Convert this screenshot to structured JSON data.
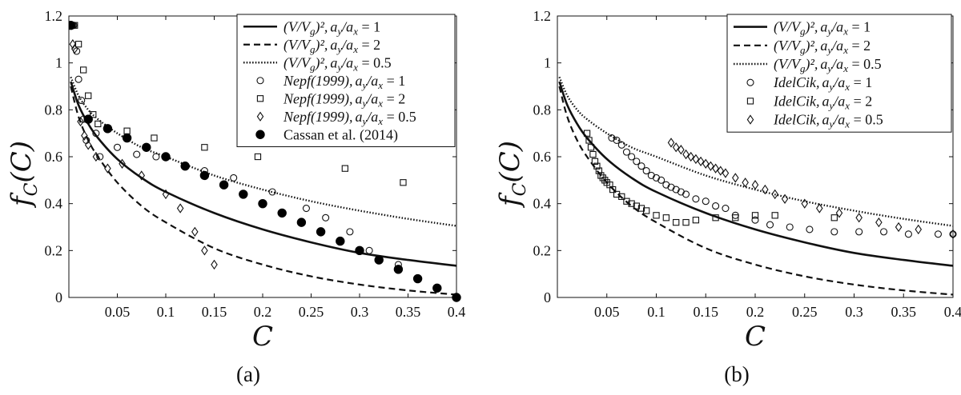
{
  "figure": {
    "panel_labels": [
      "(a)",
      "(b)"
    ]
  },
  "chart_data": [
    {
      "type": "line",
      "panel": "(a)",
      "xlabel": "C",
      "ylabel": "f_C(C)",
      "ylabel_main": "f",
      "ylabel_sub": "C",
      "ylabel_arg": "(C)",
      "xlim": [
        0,
        0.4
      ],
      "ylim": [
        0,
        1.2
      ],
      "xticks": [
        "0.05",
        "0.1",
        "0.15",
        "0.2",
        "0.25",
        "0.3",
        "0.35",
        "0.4"
      ],
      "yticks": [
        "0",
        "0.2",
        "0.4",
        "0.6",
        "0.8",
        "1",
        "1.2"
      ],
      "legend_position": "top-right",
      "lines": [
        {
          "name": "(V/V_g)^2, a_y/a_x = 1",
          "style": "solid",
          "x": [
            0.002,
            0.01,
            0.02,
            0.03,
            0.05,
            0.075,
            0.1,
            0.15,
            0.2,
            0.25,
            0.3,
            0.35,
            0.4
          ],
          "y": [
            0.92,
            0.82,
            0.74,
            0.68,
            0.59,
            0.51,
            0.45,
            0.36,
            0.29,
            0.235,
            0.19,
            0.16,
            0.135
          ]
        },
        {
          "name": "(V/V_g)^2, a_y/a_x = 2",
          "style": "dashed",
          "x": [
            0.002,
            0.01,
            0.02,
            0.03,
            0.05,
            0.075,
            0.1,
            0.15,
            0.2,
            0.25,
            0.3,
            0.35,
            0.4
          ],
          "y": [
            0.9,
            0.77,
            0.67,
            0.6,
            0.49,
            0.39,
            0.32,
            0.21,
            0.14,
            0.09,
            0.055,
            0.03,
            0.012
          ]
        },
        {
          "name": "(V/V_g)^2, a_y/a_x = 0.5",
          "style": "dotted",
          "x": [
            0.002,
            0.01,
            0.02,
            0.03,
            0.05,
            0.075,
            0.1,
            0.15,
            0.2,
            0.25,
            0.3,
            0.35,
            0.4
          ],
          "y": [
            0.94,
            0.86,
            0.8,
            0.76,
            0.7,
            0.64,
            0.6,
            0.52,
            0.46,
            0.41,
            0.37,
            0.335,
            0.305
          ]
        }
      ],
      "series": [
        {
          "name": "Nepf(1999), a_y/a_x = 1",
          "marker": "circle-open",
          "x": [
            0.004,
            0.005,
            0.008,
            0.01,
            0.013,
            0.015,
            0.018,
            0.028,
            0.032,
            0.05,
            0.07,
            0.09,
            0.12,
            0.14,
            0.17,
            0.21,
            0.245,
            0.265,
            0.29,
            0.31,
            0.34
          ],
          "y": [
            1.16,
            1.16,
            1.05,
            0.93,
            0.84,
            0.76,
            0.67,
            0.7,
            0.6,
            0.64,
            0.61,
            0.6,
            0.56,
            0.54,
            0.51,
            0.45,
            0.38,
            0.34,
            0.28,
            0.2,
            0.14
          ]
        },
        {
          "name": "Nepf(1999), a_y/a_x = 2",
          "marker": "square-open",
          "x": [
            0.006,
            0.01,
            0.015,
            0.02,
            0.025,
            0.03,
            0.04,
            0.06,
            0.088,
            0.14,
            0.195,
            0.285,
            0.345
          ],
          "y": [
            1.16,
            1.08,
            0.97,
            0.86,
            0.78,
            0.74,
            0.72,
            0.71,
            0.68,
            0.64,
            0.6,
            0.55,
            0.49
          ]
        },
        {
          "name": "Nepf(1999), a_y/a_x = 0.5",
          "marker": "diamond-open",
          "x": [
            0.004,
            0.006,
            0.012,
            0.016,
            0.02,
            0.028,
            0.04,
            0.055,
            0.075,
            0.1,
            0.115,
            0.13,
            0.14,
            0.15
          ],
          "y": [
            1.08,
            1.06,
            0.75,
            0.69,
            0.65,
            0.6,
            0.55,
            0.57,
            0.52,
            0.44,
            0.38,
            0.28,
            0.2,
            0.14
          ]
        },
        {
          "name": "Cassan et al. (2014)",
          "marker": "circle-filled",
          "x": [
            0.002,
            0.02,
            0.04,
            0.06,
            0.08,
            0.1,
            0.12,
            0.14,
            0.16,
            0.18,
            0.2,
            0.22,
            0.24,
            0.26,
            0.28,
            0.3,
            0.32,
            0.34,
            0.36,
            0.38,
            0.4
          ],
          "y": [
            1.16,
            0.76,
            0.72,
            0.68,
            0.64,
            0.6,
            0.56,
            0.52,
            0.48,
            0.44,
            0.4,
            0.36,
            0.32,
            0.28,
            0.24,
            0.2,
            0.16,
            0.12,
            0.08,
            0.04,
            0.0
          ]
        }
      ],
      "legend_entries": [
        {
          "main": "(V/V",
          "sub": "g",
          "rest": ")²,",
          "rest2": "a",
          "rest2sub": "y",
          "slash": "/a",
          "slashsub": "x",
          "eq": " = 1",
          "marker": "solid"
        },
        {
          "main": "(V/V",
          "sub": "g",
          "rest": ")²,",
          "rest2": "a",
          "rest2sub": "y",
          "slash": "/a",
          "slashsub": "x",
          "eq": " = 2",
          "marker": "dashed"
        },
        {
          "main": "(V/V",
          "sub": "g",
          "rest": ")²,",
          "rest2": "a",
          "rest2sub": "y",
          "slash": "/a",
          "slashsub": "x",
          "eq": " = 0.5",
          "marker": "dotted"
        },
        {
          "main": "Nepf(1999),",
          "sub": "",
          "rest": "",
          "rest2": "a",
          "rest2sub": "y",
          "slash": "/a",
          "slashsub": "x",
          "eq": " = 1",
          "marker": "circle-open"
        },
        {
          "main": "Nepf(1999),",
          "sub": "",
          "rest": "",
          "rest2": "a",
          "rest2sub": "y",
          "slash": "/a",
          "slashsub": "x",
          "eq": " = 2",
          "marker": "square-open"
        },
        {
          "main": "Nepf(1999),",
          "sub": "",
          "rest": "",
          "rest2": "a",
          "rest2sub": "y",
          "slash": "/a",
          "slashsub": "x",
          "eq": " = 0.5",
          "marker": "diamond-open"
        },
        {
          "main": "Cassan et al. (2014)",
          "roman": true,
          "marker": "circle-filled"
        }
      ]
    },
    {
      "type": "line",
      "panel": "(b)",
      "xlabel": "C",
      "ylabel": "f_C(C)",
      "ylabel_main": "f",
      "ylabel_sub": "C",
      "ylabel_arg": "(C)",
      "xlim": [
        0,
        0.4
      ],
      "ylim": [
        0,
        1.2
      ],
      "xticks": [
        "0.05",
        "0.1",
        "0.15",
        "0.2",
        "0.25",
        "0.3",
        "0.35",
        "0.4"
      ],
      "yticks": [
        "0",
        "0.2",
        "0.4",
        "0.6",
        "0.8",
        "1",
        "1.2"
      ],
      "legend_position": "top-right",
      "lines": [
        {
          "name": "(V/V_g)^2, a_y/a_x = 1",
          "style": "solid",
          "x": [
            0.002,
            0.01,
            0.02,
            0.03,
            0.05,
            0.075,
            0.1,
            0.15,
            0.2,
            0.25,
            0.3,
            0.35,
            0.4
          ],
          "y": [
            0.92,
            0.82,
            0.74,
            0.68,
            0.59,
            0.51,
            0.45,
            0.36,
            0.29,
            0.235,
            0.19,
            0.16,
            0.135
          ]
        },
        {
          "name": "(V/V_g)^2, a_y/a_x = 2",
          "style": "dashed",
          "x": [
            0.002,
            0.01,
            0.02,
            0.03,
            0.05,
            0.075,
            0.1,
            0.15,
            0.2,
            0.25,
            0.3,
            0.35,
            0.4
          ],
          "y": [
            0.9,
            0.77,
            0.67,
            0.6,
            0.49,
            0.39,
            0.32,
            0.21,
            0.14,
            0.09,
            0.055,
            0.03,
            0.012
          ]
        },
        {
          "name": "(V/V_g)^2, a_y/a_x = 0.5",
          "style": "dotted",
          "x": [
            0.002,
            0.01,
            0.02,
            0.03,
            0.05,
            0.075,
            0.1,
            0.15,
            0.2,
            0.25,
            0.3,
            0.35,
            0.4
          ],
          "y": [
            0.94,
            0.86,
            0.8,
            0.76,
            0.7,
            0.64,
            0.6,
            0.52,
            0.46,
            0.41,
            0.37,
            0.335,
            0.305
          ]
        }
      ],
      "series": [
        {
          "name": "IdelCik, a_y/a_x = 1",
          "marker": "circle-open",
          "x": [
            0.055,
            0.06,
            0.065,
            0.07,
            0.075,
            0.08,
            0.085,
            0.09,
            0.095,
            0.1,
            0.105,
            0.11,
            0.115,
            0.12,
            0.125,
            0.13,
            0.14,
            0.15,
            0.16,
            0.17,
            0.18,
            0.2,
            0.215,
            0.235,
            0.255,
            0.28,
            0.305,
            0.33,
            0.355,
            0.385,
            0.4
          ],
          "y": [
            0.68,
            0.67,
            0.65,
            0.62,
            0.6,
            0.58,
            0.56,
            0.54,
            0.52,
            0.51,
            0.5,
            0.48,
            0.47,
            0.46,
            0.45,
            0.44,
            0.42,
            0.41,
            0.39,
            0.38,
            0.35,
            0.33,
            0.31,
            0.3,
            0.29,
            0.28,
            0.28,
            0.28,
            0.27,
            0.27,
            0.27
          ]
        },
        {
          "name": "IdelCik, a_y/a_x = 2",
          "marker": "square-open",
          "x": [
            0.03,
            0.032,
            0.034,
            0.036,
            0.038,
            0.04,
            0.042,
            0.044,
            0.046,
            0.048,
            0.05,
            0.053,
            0.056,
            0.06,
            0.065,
            0.07,
            0.075,
            0.08,
            0.085,
            0.09,
            0.1,
            0.11,
            0.12,
            0.13,
            0.14,
            0.16,
            0.18,
            0.2,
            0.22,
            0.28
          ],
          "y": [
            0.7,
            0.67,
            0.64,
            0.61,
            0.58,
            0.56,
            0.54,
            0.52,
            0.51,
            0.5,
            0.49,
            0.48,
            0.46,
            0.44,
            0.43,
            0.41,
            0.4,
            0.39,
            0.38,
            0.37,
            0.35,
            0.34,
            0.32,
            0.32,
            0.33,
            0.34,
            0.34,
            0.35,
            0.35,
            0.34
          ]
        },
        {
          "name": "IdelCik, a_y/a_x = 0.5",
          "marker": "diamond-open",
          "x": [
            0.115,
            0.12,
            0.125,
            0.13,
            0.135,
            0.14,
            0.145,
            0.15,
            0.155,
            0.16,
            0.165,
            0.17,
            0.18,
            0.19,
            0.2,
            0.21,
            0.22,
            0.23,
            0.25,
            0.265,
            0.285,
            0.305,
            0.325,
            0.345,
            0.365,
            0.4
          ],
          "y": [
            0.66,
            0.64,
            0.63,
            0.61,
            0.6,
            0.59,
            0.58,
            0.57,
            0.56,
            0.55,
            0.54,
            0.53,
            0.51,
            0.49,
            0.48,
            0.46,
            0.44,
            0.42,
            0.4,
            0.38,
            0.36,
            0.34,
            0.32,
            0.3,
            0.29,
            0.27
          ]
        }
      ],
      "legend_entries": [
        {
          "main": "(V/V",
          "sub": "g",
          "rest": ")²,",
          "rest2": "a",
          "rest2sub": "y",
          "slash": "/a",
          "slashsub": "x",
          "eq": " = 1",
          "marker": "solid"
        },
        {
          "main": "(V/V",
          "sub": "g",
          "rest": ")²,",
          "rest2": "a",
          "rest2sub": "y",
          "slash": "/a",
          "slashsub": "x",
          "eq": " = 2",
          "marker": "dashed"
        },
        {
          "main": "(V/V",
          "sub": "g",
          "rest": ")²,",
          "rest2": "a",
          "rest2sub": "y",
          "slash": "/a",
          "slashsub": "x",
          "eq": " = 0.5",
          "marker": "dotted"
        },
        {
          "main": "IdelCik,",
          "sub": "",
          "rest": "",
          "rest2": "a",
          "rest2sub": "y",
          "slash": "/a",
          "slashsub": "x",
          "eq": " = 1",
          "marker": "circle-open"
        },
        {
          "main": "IdelCik,",
          "sub": "",
          "rest": "",
          "rest2": "a",
          "rest2sub": "y",
          "slash": "/a",
          "slashsub": "x",
          "eq": " = 2",
          "marker": "square-open"
        },
        {
          "main": "IdelCik,",
          "sub": "",
          "rest": "",
          "rest2": "a",
          "rest2sub": "y",
          "slash": "/a",
          "slashsub": "x",
          "eq": " = 0.5",
          "marker": "diamond-open"
        }
      ]
    }
  ]
}
